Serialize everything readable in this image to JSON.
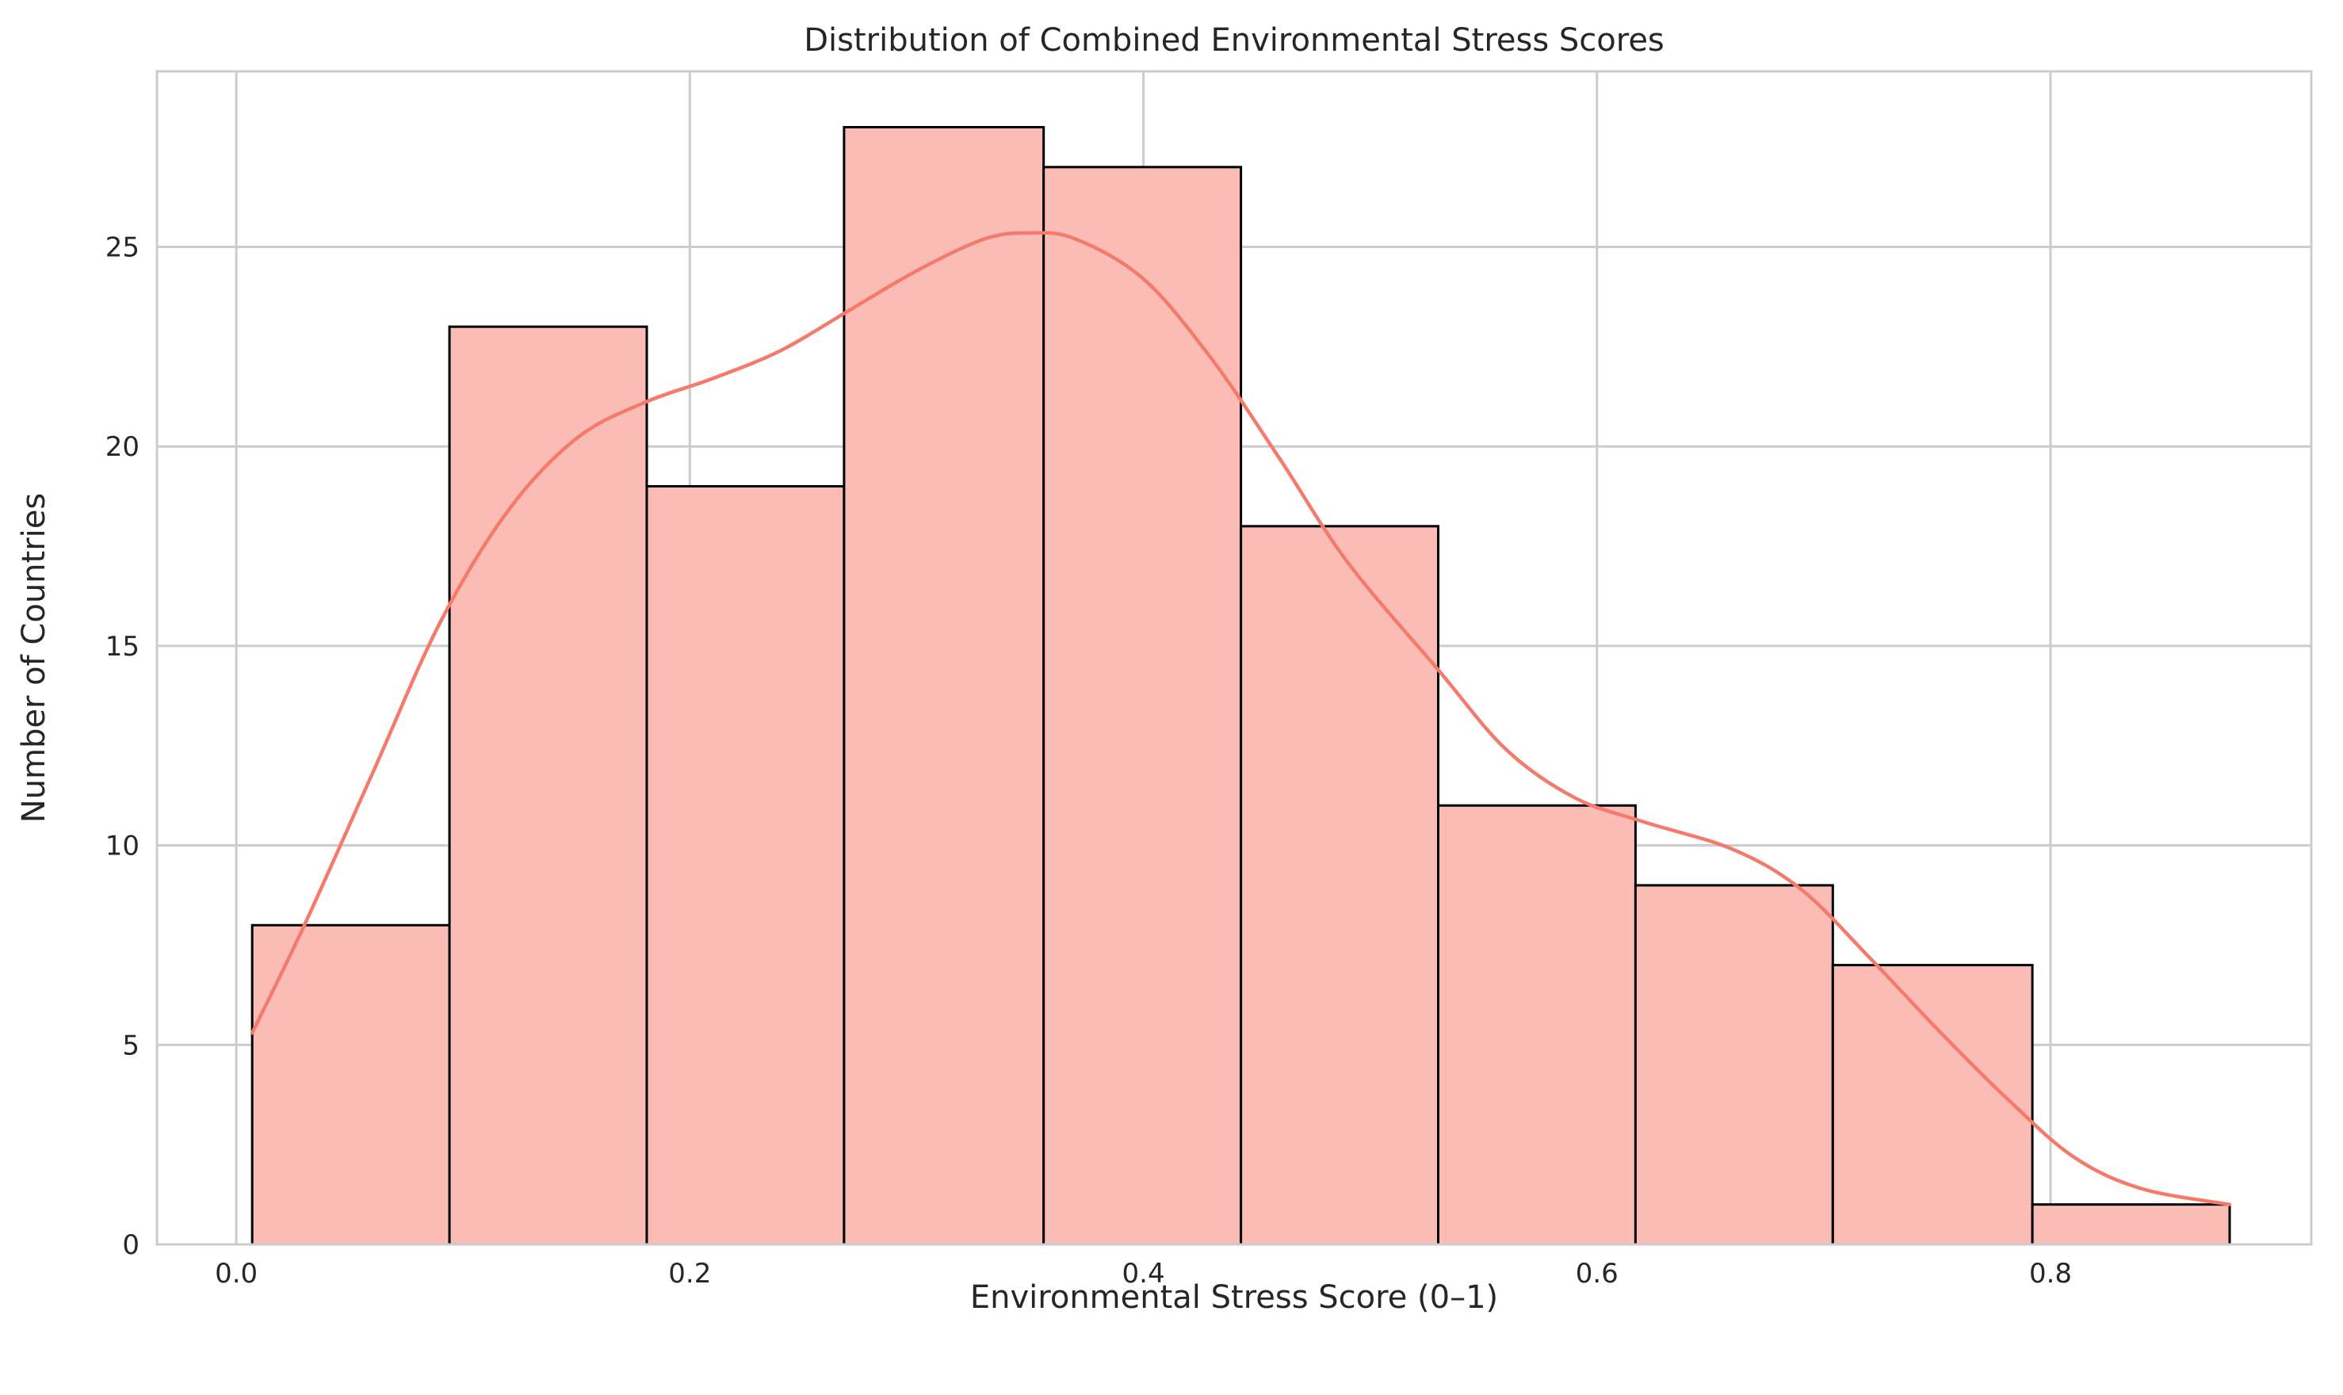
{
  "chart_data": {
    "type": "bar",
    "subtype": "histogram with kde",
    "title": "Distribution of Combined Environmental Stress Scores",
    "xlabel": "Environmental Stress Score (0–1)",
    "ylabel": "Number of Countries",
    "xlim": [
      -0.035,
      0.915
    ],
    "ylim": [
      0,
      29.4
    ],
    "xticks": [
      0.0,
      0.2,
      0.4,
      0.6,
      0.8
    ],
    "xtick_labels": [
      "0.0",
      "0.2",
      "0.4",
      "0.6",
      "0.8"
    ],
    "yticks": [
      0,
      5,
      10,
      15,
      20,
      25
    ],
    "ytick_labels": [
      "0",
      "5",
      "10",
      "15",
      "20",
      "25"
    ],
    "grid": true,
    "bins": [
      {
        "start": 0.007,
        "end": 0.094,
        "count": 8
      },
      {
        "start": 0.094,
        "end": 0.181,
        "count": 23
      },
      {
        "start": 0.181,
        "end": 0.268,
        "count": 19
      },
      {
        "start": 0.268,
        "end": 0.356,
        "count": 28
      },
      {
        "start": 0.356,
        "end": 0.443,
        "count": 27
      },
      {
        "start": 0.443,
        "end": 0.53,
        "count": 18
      },
      {
        "start": 0.53,
        "end": 0.617,
        "count": 11
      },
      {
        "start": 0.617,
        "end": 0.704,
        "count": 9
      },
      {
        "start": 0.704,
        "end": 0.792,
        "count": 7
      },
      {
        "start": 0.792,
        "end": 0.879,
        "count": 1
      }
    ],
    "kde": {
      "x": [
        0.007,
        0.03,
        0.06,
        0.09,
        0.12,
        0.15,
        0.18,
        0.21,
        0.24,
        0.27,
        0.3,
        0.33,
        0.35,
        0.37,
        0.4,
        0.43,
        0.46,
        0.49,
        0.53,
        0.56,
        0.59,
        0.62,
        0.66,
        0.69,
        0.72,
        0.75,
        0.78,
        0.81,
        0.84,
        0.879
      ],
      "y": [
        5.3,
        8.0,
        11.8,
        15.6,
        18.4,
        20.2,
        21.1,
        21.7,
        22.4,
        23.4,
        24.4,
        25.2,
        25.35,
        25.2,
        24.2,
        22.2,
        19.7,
        17.1,
        14.4,
        12.4,
        11.2,
        10.6,
        9.9,
        8.9,
        7.2,
        5.4,
        3.7,
        2.2,
        1.4,
        1.0
      ]
    },
    "colors": {
      "bar_fill": "#fbbcb6",
      "bar_edge": "#000000",
      "kde_line": "#f47b6c",
      "grid": "#cccccc",
      "spine": "#cccccc",
      "text": "#262626"
    }
  }
}
